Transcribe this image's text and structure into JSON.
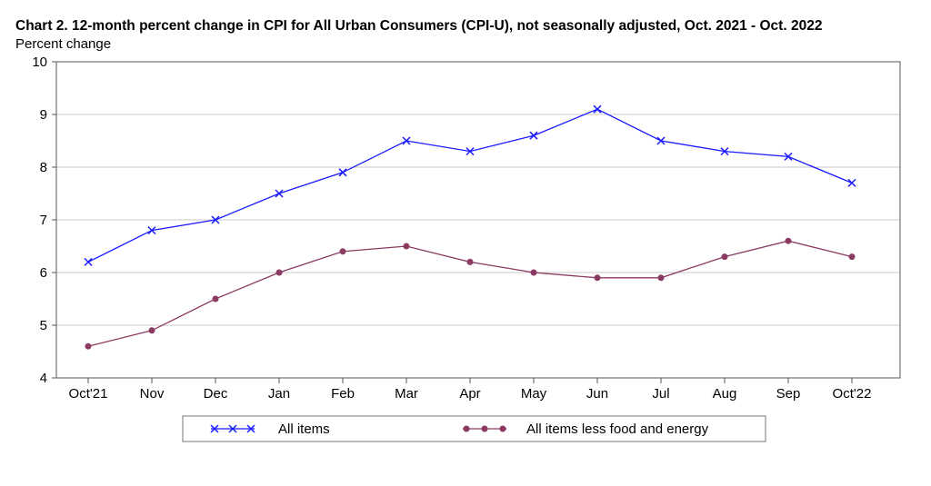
{
  "chart_data": {
    "type": "line",
    "title": "Chart 2. 12-month percent change in CPI for All Urban Consumers (CPI-U), not seasonally adjusted, Oct. 2021 - Oct. 2022",
    "ylabel": "Percent change",
    "xlabel": "",
    "categories": [
      "Oct'21",
      "Nov",
      "Dec",
      "Jan",
      "Feb",
      "Mar",
      "Apr",
      "May",
      "Jun",
      "Jul",
      "Aug",
      "Sep",
      "Oct'22"
    ],
    "ylim": [
      4,
      10
    ],
    "yticks": [
      4,
      5,
      6,
      7,
      8,
      9,
      10
    ],
    "grid": true,
    "legend_position": "bottom",
    "series": [
      {
        "name": "All items",
        "marker": "x",
        "color": "#1a1aff",
        "values": [
          6.2,
          6.8,
          7.0,
          7.5,
          7.9,
          8.5,
          8.3,
          8.6,
          9.1,
          8.5,
          8.3,
          8.2,
          7.7
        ]
      },
      {
        "name": "All items less food and energy",
        "marker": "circle",
        "color": "#8b3a62",
        "values": [
          4.6,
          4.9,
          5.5,
          6.0,
          6.4,
          6.5,
          6.2,
          6.0,
          5.9,
          5.9,
          6.3,
          6.6,
          6.3
        ]
      }
    ]
  }
}
